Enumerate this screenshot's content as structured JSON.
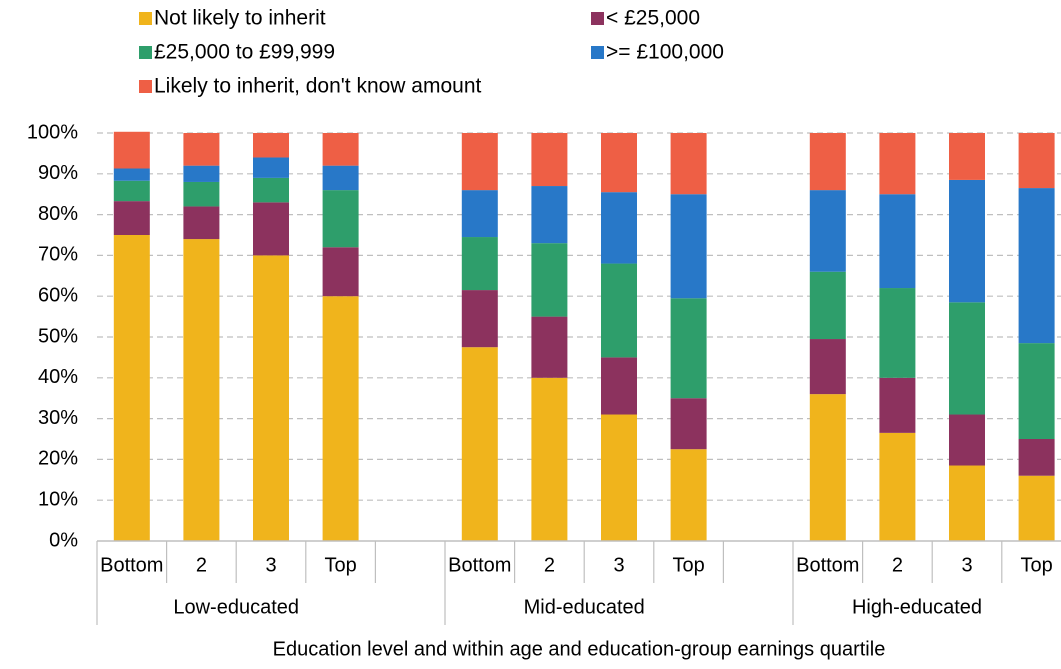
{
  "chart_data": {
    "type": "stacked_bar",
    "x_label": "Education level and within age and education-group earnings quartile",
    "categories": [
      "Bottom",
      "2",
      "3",
      "Top",
      null,
      "Bottom",
      "2",
      "3",
      "Top",
      null,
      "Bottom",
      "2",
      "3",
      "Top"
    ],
    "groups": [
      "Low-educated",
      "Mid-educated",
      "High-educated"
    ],
    "series": [
      {
        "name": "Not likely to inherit",
        "color": "#f0b41c",
        "values": [
          75,
          74,
          70,
          60,
          null,
          47.5,
          40,
          31,
          22.5,
          null,
          36,
          26.5,
          18.5,
          16
        ]
      },
      {
        "name": "< £25,000",
        "color": "#8c325e",
        "values": [
          8.3,
          8,
          13,
          12,
          null,
          14,
          15,
          14,
          12.5,
          null,
          13.5,
          13.5,
          12.5,
          9
        ]
      },
      {
        "name": "£25,000 to £99,999",
        "color": "#2e9e6b",
        "values": [
          5,
          6,
          6,
          14,
          null,
          13,
          18,
          23,
          24.5,
          null,
          16.5,
          22,
          27.5,
          23.5
        ]
      },
      {
        "name": ">= £100,000",
        "color": "#2878c8",
        "values": [
          3,
          4,
          5,
          6,
          null,
          11.5,
          14,
          17.5,
          25.5,
          null,
          20,
          23,
          30,
          38
        ]
      },
      {
        "name": "Likely to inherit, don't know amount",
        "color": "#ee5f45",
        "values": [
          9,
          8,
          6,
          8,
          null,
          14,
          13,
          14.5,
          15,
          null,
          14,
          15,
          11.5,
          13.5
        ]
      }
    ],
    "ylim": [
      0,
      100
    ],
    "yticks": [
      {
        "value": 0,
        "label": "0%"
      },
      {
        "value": 10,
        "label": "10%"
      },
      {
        "value": 20,
        "label": "20%"
      },
      {
        "value": 30,
        "label": "30%"
      },
      {
        "value": 40,
        "label": "40%"
      },
      {
        "value": 50,
        "label": "50%"
      },
      {
        "value": 60,
        "label": "60%"
      },
      {
        "value": 70,
        "label": "70%"
      },
      {
        "value": 80,
        "label": "80%"
      },
      {
        "value": 90,
        "label": "90%"
      },
      {
        "value": 100,
        "label": "100%"
      }
    ],
    "grid": true
  }
}
